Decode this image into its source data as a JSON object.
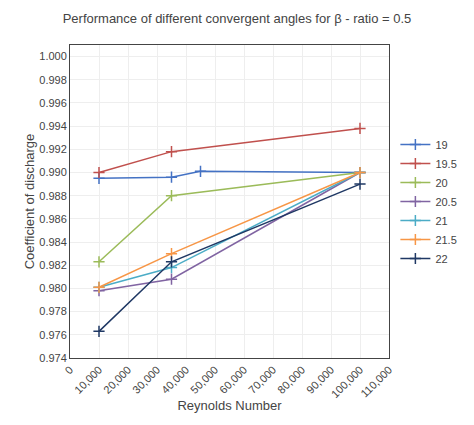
{
  "chart_data": {
    "type": "line",
    "title": "Performance of different convergent angles for β - ratio = 0.5",
    "x_label": "Reynolds Number",
    "y_label": "Coefficient of discharge",
    "xlim": [
      0,
      110000
    ],
    "ylim": [
      0.974,
      1.001
    ],
    "xticks": [
      0,
      {
        "value": 10000,
        "label": "10,000"
      },
      {
        "value": 20000,
        "label": "20,000"
      },
      {
        "value": 30000,
        "label": "30,000"
      },
      {
        "value": 40000,
        "label": "40,000"
      },
      {
        "value": 50000,
        "label": "50,000"
      },
      {
        "value": 60000,
        "label": "60,000"
      },
      {
        "value": 70000,
        "label": "70,000"
      },
      {
        "value": 80000,
        "label": "80,000"
      },
      {
        "value": 90000,
        "label": "90,000"
      },
      {
        "value": 100000,
        "label": "100,000"
      },
      {
        "value": 110000,
        "label": "110,000"
      }
    ],
    "yticks": [
      0.974,
      0.976,
      0.978,
      {
        "value": 0.98,
        "label": "0.980"
      },
      0.982,
      0.984,
      0.986,
      0.988,
      {
        "value": 0.99,
        "label": "0.990"
      },
      0.992,
      0.994,
      0.996,
      0.998,
      {
        "value": 1,
        "label": "1.000"
      }
    ],
    "grid": true,
    "legend": "right",
    "marker": "+",
    "series": [
      {
        "name": "19",
        "color": "#4472C4",
        "x": [
          10000,
          35000,
          45000,
          100000
        ],
        "values": [
          0.9895,
          0.9896,
          0.9901,
          0.99
        ]
      },
      {
        "name": "19.5",
        "color": "#C0504D",
        "x": [
          10000,
          35000,
          100000
        ],
        "values": [
          0.99,
          0.9918,
          0.9938
        ]
      },
      {
        "name": "20",
        "color": "#9BBB59",
        "x": [
          10000,
          35000,
          100000
        ],
        "values": [
          0.9823,
          0.988,
          0.99
        ]
      },
      {
        "name": "20.5",
        "color": "#8064A2",
        "x": [
          10000,
          35000,
          100000
        ],
        "values": [
          0.9798,
          0.9808,
          0.99
        ]
      },
      {
        "name": "21",
        "color": "#4BACC6",
        "x": [
          10000,
          35000,
          100000
        ],
        "values": [
          0.9801,
          0.9818,
          0.99
        ]
      },
      {
        "name": "21.5",
        "color": "#F79646",
        "x": [
          10000,
          35000,
          100000
        ],
        "values": [
          0.9801,
          0.983,
          0.99
        ]
      },
      {
        "name": "22",
        "color": "#1F3864",
        "x": [
          10000,
          35000,
          100000
        ],
        "values": [
          0.9763,
          0.9823,
          0.989
        ]
      }
    ]
  }
}
